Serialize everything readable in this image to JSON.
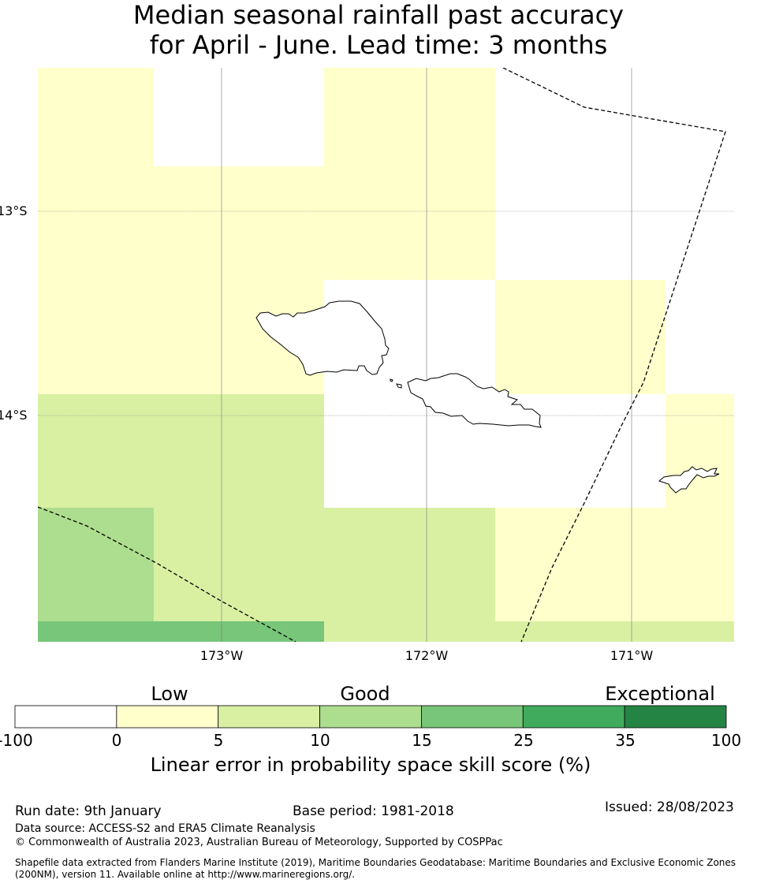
{
  "title": {
    "line1": "Median seasonal rainfall past accuracy",
    "line2": "for April - June. Lead time: 3 months"
  },
  "map": {
    "lat_ticks": [
      "13°S",
      "14°S"
    ],
    "lon_ticks": [
      "173°W",
      "172°W",
      "171°W"
    ],
    "grid_on": true,
    "boundary_style": "dashed",
    "land_features": [
      "Savai'i",
      "Upolu",
      "Manono",
      "Apolima",
      "Tutuila"
    ]
  },
  "colorbar": {
    "categories": [
      "Low",
      "Good",
      "Exceptional"
    ],
    "ticks": [
      "-100",
      "0",
      "5",
      "10",
      "15",
      "25",
      "35",
      "100"
    ],
    "colors": [
      "#ffffff",
      "#ffffcc",
      "#d9f0a3",
      "#addd8e",
      "#78c679",
      "#41ab5d",
      "#238443"
    ],
    "label": "Linear error in probability space skill score (%)"
  },
  "footer": {
    "run_date": "Run date: 9th January",
    "base_period": "Base period: 1981-2018",
    "issued": "Issued: 28/08/2023",
    "data_source": "Data source: ACCESS-S2 and ERA5 Climate Reanalysis",
    "copyright": "© Commonwealth of Australia 2023, Australian Bureau of Meteorology, Supported by COSPPac",
    "shapefile": "Shapefile data extracted from Flanders Marine Institute (2019), Maritime Boundaries Geodatabase: Maritime Boundaries and Exclusive Economic Zones (200NM), version 11. Available online at http://www.marineregions.org/."
  }
}
